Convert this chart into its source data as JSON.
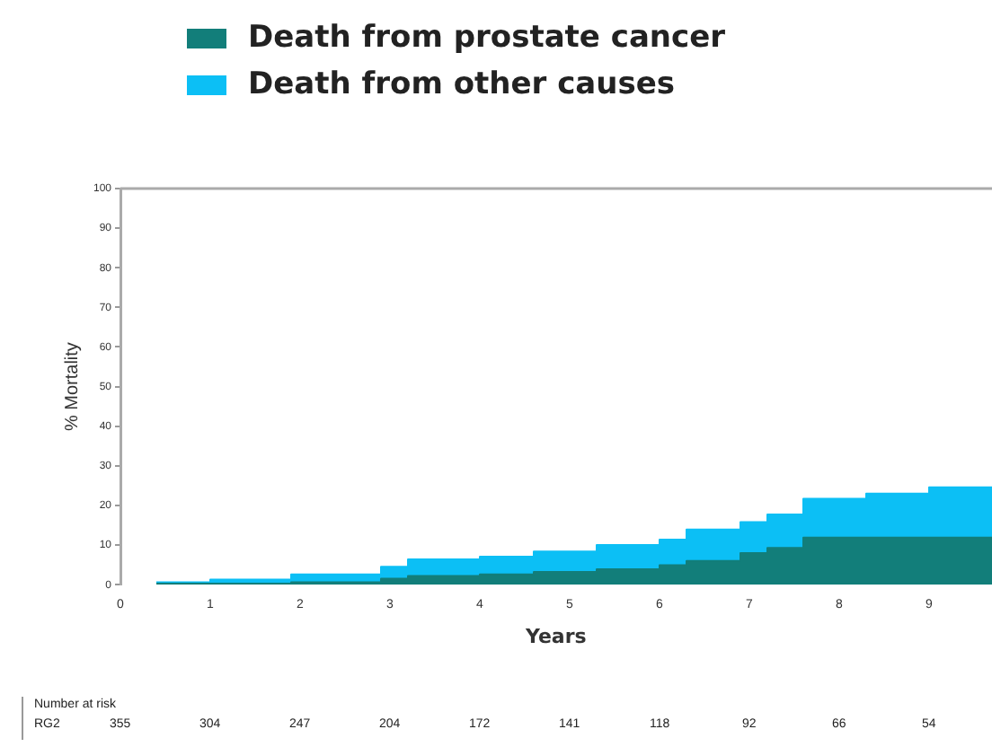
{
  "chart_data": {
    "type": "area",
    "stacked": true,
    "xlabel": "Years",
    "ylabel": "% Mortality",
    "x": [
      0.4,
      1.0,
      1.9,
      2.9,
      3.2,
      4.0,
      4.6,
      5.3,
      6.0,
      6.3,
      6.9,
      7.2,
      7.6,
      8.3,
      9.0,
      9.7
    ],
    "series": [
      {
        "name": "Death from prostate cancer",
        "color": "#127e7a",
        "values": [
          0.3,
          0.3,
          0.6,
          1.5,
          2.2,
          2.6,
          3.2,
          3.9,
          4.9,
          6.0,
          8.0,
          9.3,
          11.9,
          11.9,
          11.9,
          11.9
        ]
      },
      {
        "name": "Death from other causes",
        "color": "#0cbff5",
        "values": [
          0.3,
          1.0,
          2.0,
          3.0,
          4.2,
          4.5,
          5.2,
          6.1,
          6.5,
          7.9,
          7.8,
          8.4,
          9.8,
          11.1,
          12.7,
          12.7
        ]
      }
    ],
    "xlim": [
      0,
      9.7
    ],
    "xticks": [
      0,
      1,
      2,
      3,
      4,
      5,
      6,
      7,
      8,
      9
    ],
    "ylim": [
      0,
      100
    ],
    "yticks": [
      0,
      10,
      20,
      30,
      40,
      50,
      60,
      70,
      80,
      90,
      100
    ],
    "grid": false,
    "legend": "top left",
    "marker": "none",
    "line_style": "solid",
    "annotations": [
      "Number at risk",
      "RG2",
      "355",
      "304",
      "247",
      "204",
      "172",
      "141",
      "118",
      "92",
      "66",
      "54"
    ]
  }
}
